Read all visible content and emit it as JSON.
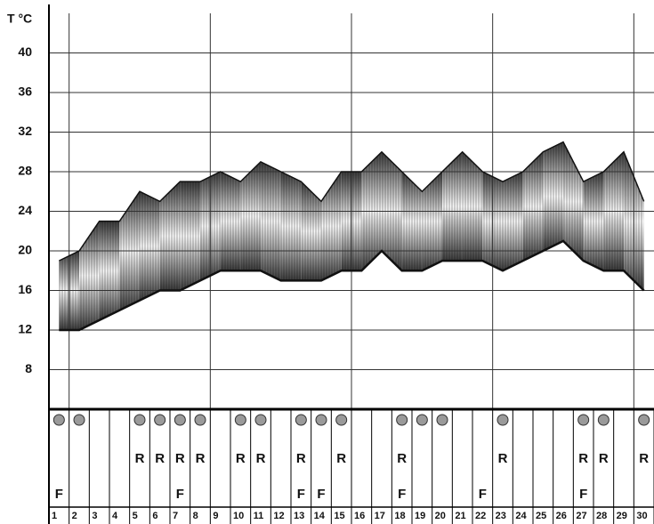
{
  "chart_data": {
    "type": "range",
    "y_label": "T °C",
    "categories": [
      "1",
      "2",
      "3",
      "4",
      "5",
      "6",
      "7",
      "8",
      "9",
      "10",
      "11",
      "12",
      "13",
      "14",
      "15",
      "16",
      "17",
      "18",
      "19",
      "20",
      "21",
      "22",
      "23",
      "24",
      "25",
      "26",
      "27",
      "28",
      "29",
      "30"
    ],
    "max_values": [
      19,
      20,
      23,
      23,
      26,
      25,
      27,
      27,
      28,
      27,
      29,
      28,
      27,
      25,
      28,
      28,
      30,
      28,
      26,
      28,
      30,
      28,
      27,
      28,
      30,
      31,
      27,
      28,
      30,
      25
    ],
    "min_values": [
      12,
      12,
      13,
      14,
      15,
      16,
      16,
      17,
      18,
      18,
      18,
      17,
      17,
      17,
      18,
      18,
      20,
      18,
      18,
      19,
      19,
      19,
      18,
      19,
      20,
      21,
      19,
      18,
      18,
      16
    ],
    "ylim": [
      4,
      44
    ],
    "yticks": [
      8,
      12,
      16,
      20,
      24,
      28,
      32,
      36,
      40
    ],
    "grid": true,
    "circle_days": [
      1,
      2,
      5,
      6,
      7,
      8,
      10,
      11,
      13,
      14,
      15,
      18,
      19,
      20,
      23,
      27,
      28,
      30
    ],
    "icons": [
      {
        "symbol": "R",
        "days": [
          5,
          6,
          7,
          8,
          10,
          11,
          13,
          15,
          18,
          23,
          27,
          28,
          30
        ]
      },
      {
        "symbol": "F",
        "days": [
          1,
          7,
          13,
          14,
          18,
          22,
          27
        ]
      }
    ]
  }
}
